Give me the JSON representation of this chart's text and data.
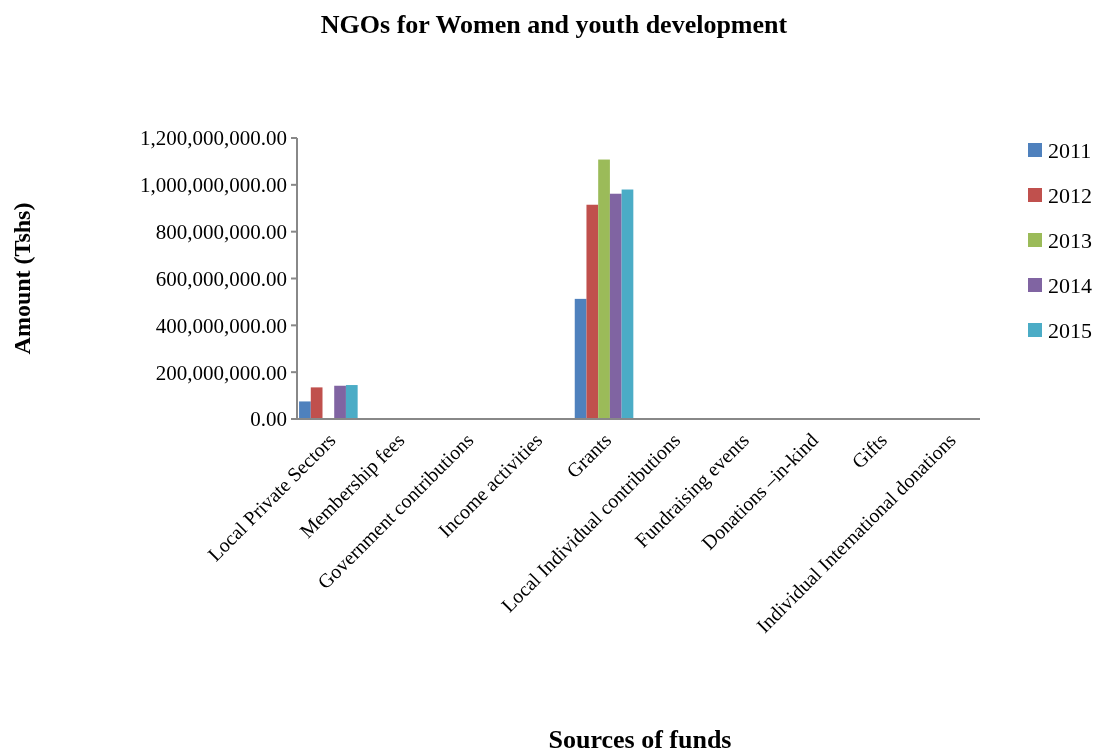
{
  "chart_data": {
    "type": "bar",
    "title": "NGOs for Women and youth development",
    "xlabel": "Sources of funds",
    "ylabel": "Amount (Tshs)",
    "categories": [
      "Local Private Sectors",
      "Membership fees",
      "Government contributions",
      "Income activities",
      "Grants",
      "Local Individual contributions",
      "Fundraising events",
      "Donations –in-kind",
      "Gifts",
      "Individual International donations"
    ],
    "series": [
      {
        "name": "2011",
        "color": "#4f81bd",
        "values": [
          75000000,
          0,
          0,
          0,
          513000000,
          0,
          0,
          0,
          0,
          0
        ]
      },
      {
        "name": "2012",
        "color": "#c0504d",
        "values": [
          135000000,
          0,
          0,
          0,
          915000000,
          0,
          0,
          0,
          0,
          0
        ]
      },
      {
        "name": "2013",
        "color": "#9bbb59",
        "values": [
          0,
          0,
          0,
          0,
          1108000000,
          0,
          0,
          0,
          0,
          0
        ]
      },
      {
        "name": "2014",
        "color": "#8064a2",
        "values": [
          142000000,
          0,
          0,
          0,
          962000000,
          0,
          0,
          0,
          0,
          0
        ]
      },
      {
        "name": "2015",
        "color": "#4bacc6",
        "values": [
          145000000,
          0,
          0,
          0,
          980000000,
          0,
          0,
          0,
          0,
          0
        ]
      }
    ],
    "ylim": [
      0,
      1200000000
    ],
    "yticks": [
      {
        "value": 0,
        "label": "0.00"
      },
      {
        "value": 200000000,
        "label": "200,000,000.00"
      },
      {
        "value": 400000000,
        "label": "400,000,000.00"
      },
      {
        "value": 600000000,
        "label": "600,000,000.00"
      },
      {
        "value": 800000000,
        "label": "800,000,000.00"
      },
      {
        "value": 1000000000,
        "label": "1,000,000,000.00"
      },
      {
        "value": 1200000000,
        "label": "1,200,000,000.00"
      }
    ],
    "grid": false,
    "legend": "right"
  }
}
